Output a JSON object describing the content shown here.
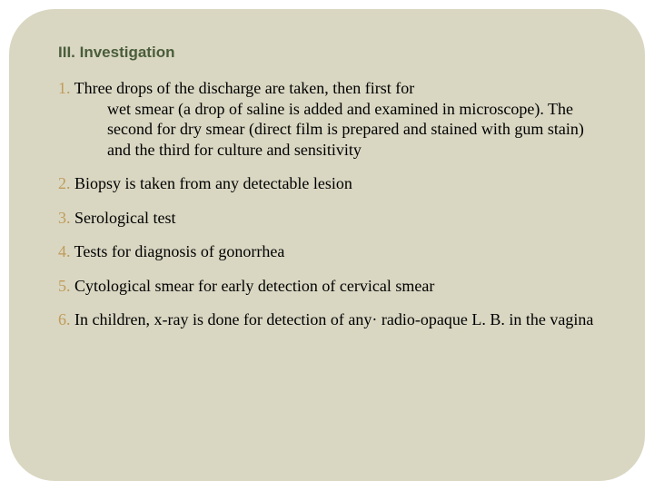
{
  "slide": {
    "background_color": "#d9d7c2",
    "border_radius": 50,
    "heading": {
      "text": "III. Investigation",
      "color": "#4a5d3a",
      "font_family": "Verdana",
      "font_size": 17,
      "font_weight": "bold"
    },
    "number_color": "#c19b5a",
    "body_color": "#000000",
    "body_font_family": "Georgia",
    "body_font_size": 18,
    "items": [
      {
        "num": "1.",
        "first_line": " Three drops of the discharge are taken, then first for",
        "rest": "wet smear (a drop of saline is added and examined in microscope). The second for dry smear (direct film is prepared and stained with gum stain) and the third for culture and sensitivity"
      },
      {
        "num": "2.",
        "text": " Biopsy is taken from any detectable lesion"
      },
      {
        "num": "3.",
        "text": " Serological test"
      },
      {
        "num": "4.",
        "text": " Tests for diagnosis of gonorrhea"
      },
      {
        "num": "5.",
        "text": " Cytological smear for early detection of cervical smear"
      },
      {
        "num": "6.",
        "text": " In children, x-ray is done for detection of any· radio-opaque L. B. in the vagina"
      }
    ]
  }
}
